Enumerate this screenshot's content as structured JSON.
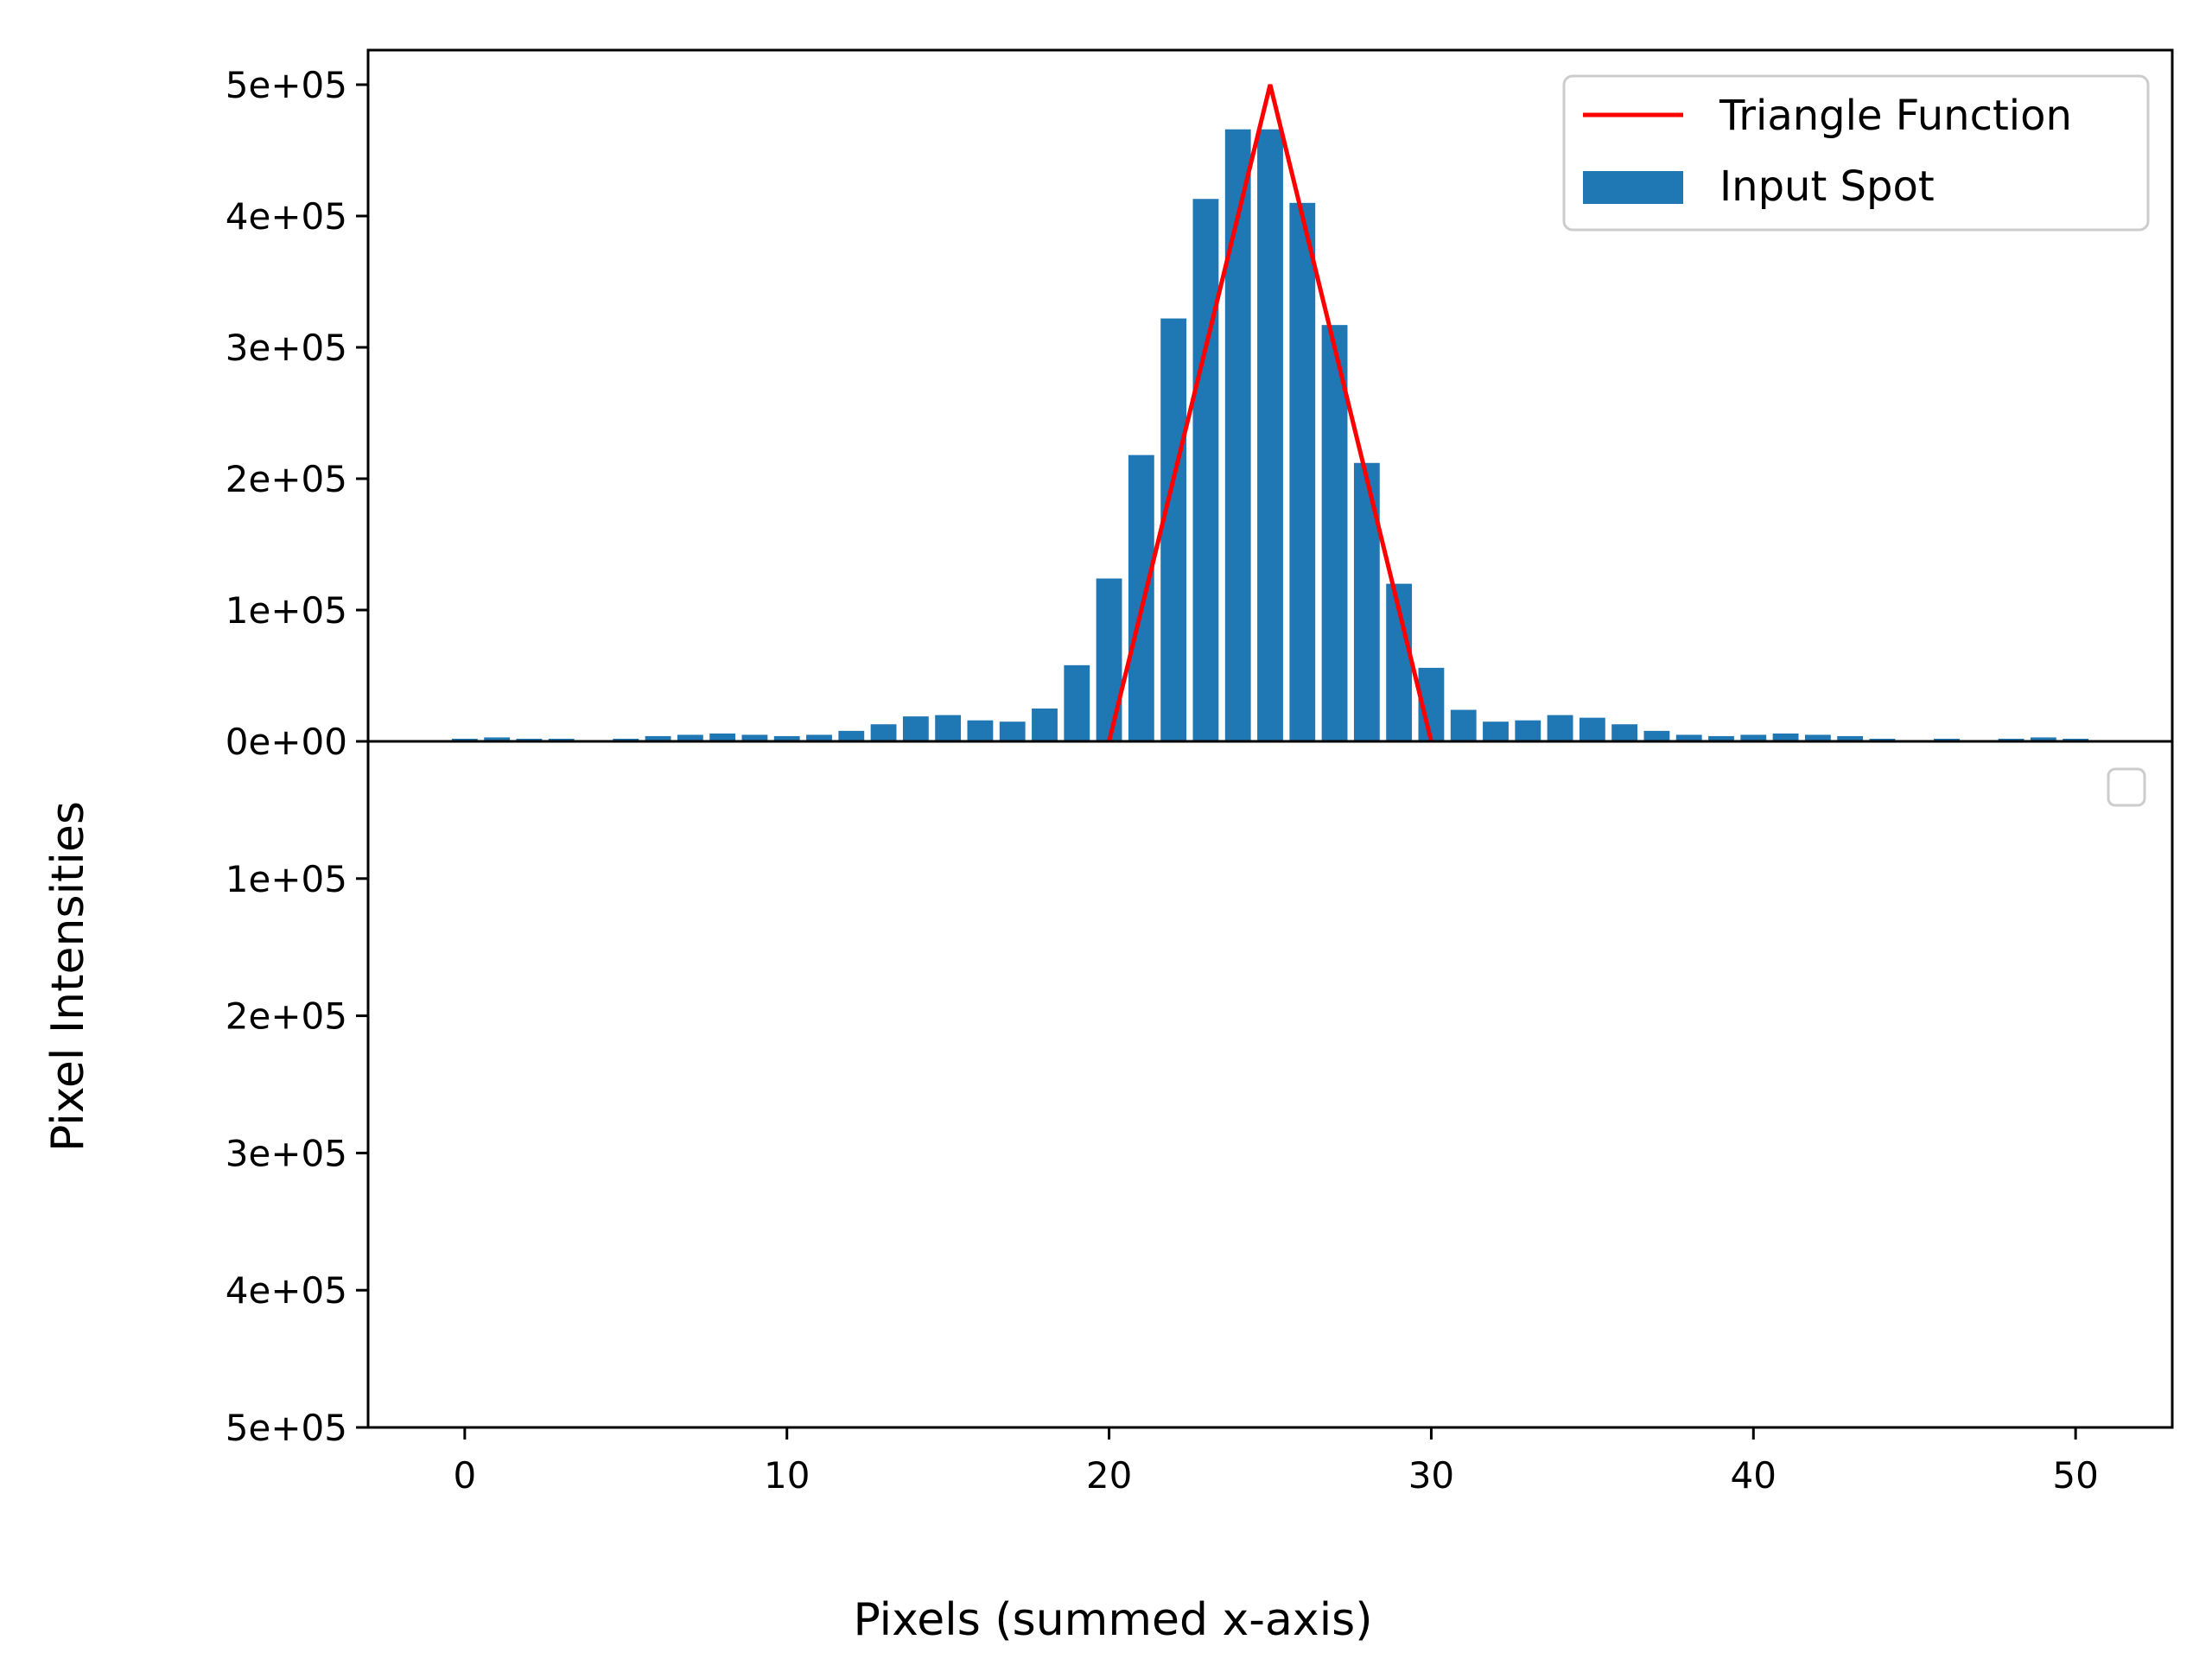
{
  "chart_data": [
    {
      "type": "bar",
      "panel": "top",
      "xlabel": "Pixels (summed x-axis)",
      "ylabel": "Pixel Intensities",
      "xlim": [
        -3,
        53
      ],
      "ylim": [
        0,
        500000
      ],
      "xticks": [
        0,
        10,
        20,
        30,
        40,
        50
      ],
      "xtick_labels": [
        "0",
        "10",
        "20",
        "30",
        "40",
        "50"
      ],
      "yticks": [
        0,
        100000,
        200000,
        300000,
        400000,
        500000
      ],
      "ytick_labels": [
        "0e+00",
        "1e+05",
        "2e+05",
        "3e+05",
        "4e+05",
        "5e+05"
      ],
      "grid": false,
      "legend_position": "upper right",
      "legend": [
        "Triangle Function",
        "Input Spot"
      ],
      "series": [
        {
          "name": "Input Spot",
          "kind": "bar",
          "color": "#1f77b4",
          "x": [
            0,
            1,
            2,
            3,
            4,
            5,
            6,
            7,
            8,
            9,
            10,
            11,
            12,
            13,
            14,
            15,
            16,
            17,
            18,
            19,
            20,
            21,
            22,
            23,
            24,
            25,
            26,
            27,
            28,
            29,
            30,
            31,
            32,
            33,
            34,
            35,
            36,
            37,
            38,
            39,
            40,
            41,
            42,
            43,
            44,
            45,
            46,
            47,
            48,
            49,
            50
          ],
          "values": [
            2000,
            3000,
            2000,
            2000,
            1000,
            2000,
            4000,
            5000,
            6000,
            5000,
            4000,
            5000,
            8000,
            13000,
            19000,
            20000,
            16000,
            15000,
            25000,
            58000,
            124000,
            218000,
            322000,
            413000,
            466000,
            466000,
            410000,
            317000,
            212000,
            120000,
            56000,
            24000,
            15000,
            16000,
            20000,
            18000,
            13000,
            8000,
            5000,
            4000,
            5000,
            6000,
            5000,
            4000,
            2000,
            1000,
            2000,
            1000,
            2000,
            3000,
            2000
          ]
        },
        {
          "name": "Triangle Function",
          "kind": "line",
          "color": "#ff0000",
          "x": [
            20,
            25,
            30
          ],
          "values": [
            0,
            500000,
            0
          ]
        }
      ]
    },
    {
      "type": "bar",
      "panel": "bottom",
      "xlim": [
        -3,
        53
      ],
      "ylim": [
        0,
        500000
      ],
      "inverted_y": true,
      "yticks": [
        100000,
        200000,
        300000,
        400000,
        500000
      ],
      "ytick_labels": [
        "1e+05",
        "2e+05",
        "3e+05",
        "4e+05",
        "5e+05"
      ],
      "legend": [],
      "series": []
    }
  ]
}
